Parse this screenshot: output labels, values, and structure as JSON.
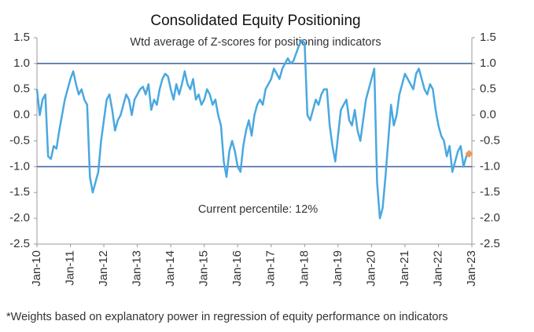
{
  "chart_data": {
    "type": "line",
    "title": "Consolidated Equity Positioning",
    "subtitle": "Wtd average of Z-scores for positioning indicators",
    "annotation": "Current percentile: 12%",
    "footnote": "*Weights based on explanatory power in regression of equity performance on indicators",
    "x": [
      "2010-01",
      "2010-02",
      "2010-03",
      "2010-04",
      "2010-05",
      "2010-06",
      "2010-07",
      "2010-08",
      "2010-09",
      "2010-10",
      "2010-11",
      "2010-12",
      "2011-01",
      "2011-02",
      "2011-03",
      "2011-04",
      "2011-05",
      "2011-06",
      "2011-07",
      "2011-08",
      "2011-09",
      "2011-10",
      "2011-11",
      "2011-12",
      "2012-01",
      "2012-02",
      "2012-03",
      "2012-04",
      "2012-05",
      "2012-06",
      "2012-07",
      "2012-08",
      "2012-09",
      "2012-10",
      "2012-11",
      "2012-12",
      "2013-01",
      "2013-02",
      "2013-03",
      "2013-04",
      "2013-05",
      "2013-06",
      "2013-07",
      "2013-08",
      "2013-09",
      "2013-10",
      "2013-11",
      "2013-12",
      "2014-01",
      "2014-02",
      "2014-03",
      "2014-04",
      "2014-05",
      "2014-06",
      "2014-07",
      "2014-08",
      "2014-09",
      "2014-10",
      "2014-11",
      "2014-12",
      "2015-01",
      "2015-02",
      "2015-03",
      "2015-04",
      "2015-05",
      "2015-06",
      "2015-07",
      "2015-08",
      "2015-09",
      "2015-10",
      "2015-11",
      "2015-12",
      "2016-01",
      "2016-02",
      "2016-03",
      "2016-04",
      "2016-05",
      "2016-06",
      "2016-07",
      "2016-08",
      "2016-09",
      "2016-10",
      "2016-11",
      "2016-12",
      "2017-01",
      "2017-02",
      "2017-03",
      "2017-04",
      "2017-05",
      "2017-06",
      "2017-07",
      "2017-08",
      "2017-09",
      "2017-10",
      "2017-11",
      "2017-12",
      "2018-01",
      "2018-02",
      "2018-03",
      "2018-04",
      "2018-05",
      "2018-06",
      "2018-07",
      "2018-08",
      "2018-09",
      "2018-10",
      "2018-11",
      "2018-12",
      "2019-01",
      "2019-02",
      "2019-03",
      "2019-04",
      "2019-05",
      "2019-06",
      "2019-07",
      "2019-08",
      "2019-09",
      "2019-10",
      "2019-11",
      "2019-12",
      "2020-01",
      "2020-02",
      "2020-03",
      "2020-04",
      "2020-05",
      "2020-06",
      "2020-07",
      "2020-08",
      "2020-09",
      "2020-10",
      "2020-11",
      "2020-12",
      "2021-01",
      "2021-02",
      "2021-03",
      "2021-04",
      "2021-05",
      "2021-06",
      "2021-07",
      "2021-08",
      "2021-09",
      "2021-10",
      "2021-11",
      "2021-12",
      "2022-01",
      "2022-02",
      "2022-03",
      "2022-04",
      "2022-05",
      "2022-06",
      "2022-07",
      "2022-08",
      "2022-09",
      "2022-10",
      "2022-11",
      "2022-12"
    ],
    "series": [
      {
        "color": "#4aa8e0",
        "values": [
          0.5,
          0.0,
          0.3,
          0.4,
          -0.8,
          -0.85,
          -0.6,
          -0.65,
          -0.3,
          0.0,
          0.3,
          0.5,
          0.7,
          0.85,
          0.6,
          0.4,
          0.5,
          0.3,
          0.2,
          -1.2,
          -1.5,
          -1.3,
          -1.1,
          -0.5,
          -0.1,
          0.3,
          0.4,
          0.1,
          -0.3,
          -0.1,
          0.0,
          0.2,
          0.4,
          0.3,
          0.0,
          0.3,
          0.4,
          0.5,
          0.55,
          0.4,
          0.6,
          0.1,
          0.3,
          0.2,
          0.5,
          0.7,
          0.8,
          0.75,
          0.5,
          0.3,
          0.6,
          0.4,
          0.6,
          0.85,
          0.6,
          0.5,
          0.7,
          0.3,
          0.4,
          0.2,
          0.3,
          0.5,
          0.4,
          0.2,
          0.3,
          0.0,
          -0.2,
          -0.9,
          -1.2,
          -0.7,
          -0.5,
          -0.7,
          -1.0,
          -1.1,
          -0.6,
          -0.3,
          -0.1,
          -0.4,
          0.0,
          0.2,
          0.3,
          0.2,
          0.5,
          0.6,
          0.7,
          0.9,
          0.8,
          0.7,
          0.9,
          1.0,
          1.1,
          1.0,
          1.05,
          1.2,
          1.35,
          1.45,
          1.4,
          0.0,
          -0.1,
          0.1,
          0.3,
          0.2,
          0.4,
          0.5,
          0.5,
          -0.2,
          -0.6,
          -0.9,
          -0.4,
          0.1,
          0.2,
          0.3,
          -0.1,
          -0.2,
          0.1,
          -0.3,
          -0.5,
          -0.1,
          0.3,
          0.5,
          0.7,
          0.9,
          -1.3,
          -2.0,
          -1.8,
          -1.2,
          -0.5,
          0.2,
          -0.2,
          0.0,
          0.4,
          0.6,
          0.8,
          0.7,
          0.6,
          0.5,
          0.8,
          0.9,
          0.7,
          0.5,
          0.4,
          0.6,
          0.5,
          0.1,
          -0.2,
          -0.4,
          -0.5,
          -0.8,
          -0.6,
          -1.1,
          -0.9,
          -0.7,
          -0.6,
          -1.0,
          -0.8,
          -0.75
        ]
      }
    ],
    "current_point": {
      "x": "2022-12",
      "value": -0.75,
      "color": "#f0955a"
    },
    "hlines": {
      "values": [
        1,
        -1
      ],
      "color": "#3a5f9e"
    },
    "xlim": [
      "2010-01",
      "2023-01"
    ],
    "xticks": [
      {
        "value": "2010-01",
        "label": "Jan-10"
      },
      {
        "value": "2011-01",
        "label": "Jan-11"
      },
      {
        "value": "2012-01",
        "label": "Jan-12"
      },
      {
        "value": "2013-01",
        "label": "Jan-13"
      },
      {
        "value": "2014-01",
        "label": "Jan-14"
      },
      {
        "value": "2015-01",
        "label": "Jan-15"
      },
      {
        "value": "2016-01",
        "label": "Jan-16"
      },
      {
        "value": "2017-01",
        "label": "Jan-17"
      },
      {
        "value": "2018-01",
        "label": "Jan-18"
      },
      {
        "value": "2019-01",
        "label": "Jan-19"
      },
      {
        "value": "2020-01",
        "label": "Jan-20"
      },
      {
        "value": "2021-01",
        "label": "Jan-21"
      },
      {
        "value": "2022-01",
        "label": "Jan-22"
      },
      {
        "value": "2023-01",
        "label": "Jan-23"
      }
    ],
    "ylim": [
      -2.5,
      1.5
    ],
    "yticks": [
      1.5,
      {
        "value": 1,
        "label": "1.0"
      },
      0.5,
      {
        "value": 0,
        "label": "0.0"
      },
      -0.5,
      {
        "value": -1,
        "label": "-1.0"
      },
      -1.5,
      {
        "value": -2,
        "label": "-2.0"
      },
      -2.5
    ],
    "y2lim": [
      -2.5,
      1.5
    ],
    "y2ticks": [
      1.5,
      {
        "value": 1,
        "label": "1.0"
      },
      0.5,
      {
        "value": 0,
        "label": "0.0"
      },
      -0.5,
      {
        "value": -1,
        "label": "-1.0"
      },
      -1.5,
      {
        "value": -2,
        "label": "-2.0"
      },
      -2.5
    ]
  }
}
